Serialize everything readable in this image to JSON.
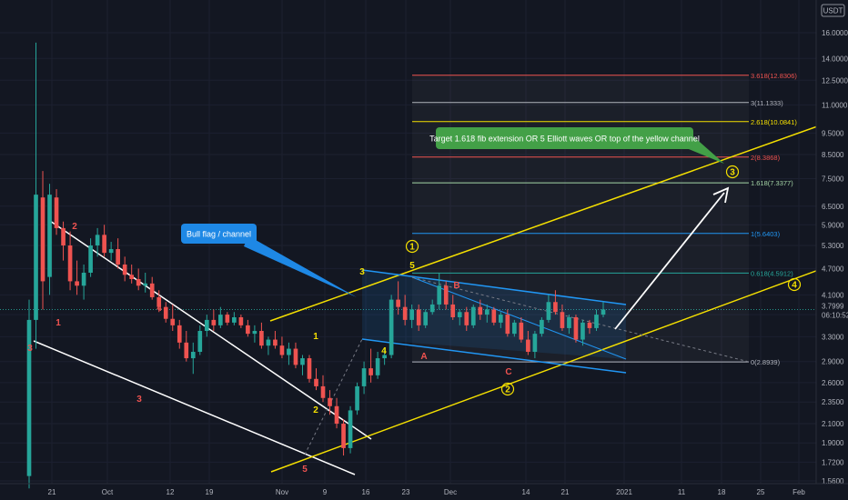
{
  "header": {
    "currency": "USDT"
  },
  "chart_data": {
    "type": "candlestick",
    "y_scale": "log",
    "ylim": [
      1.5,
      21
    ],
    "price_ticks": [
      16.0,
      14.0,
      12.5,
      11.0,
      9.5,
      8.5,
      7.5,
      6.5,
      5.9,
      5.3,
      4.7,
      4.1,
      3.7,
      3.3,
      2.9,
      2.6,
      2.35,
      2.1,
      1.9,
      1.72,
      1.56
    ],
    "price_tick_labels": [
      "16.0000",
      "14.0000",
      "12.5000",
      "11.0000",
      "9.5000",
      "8.5000",
      "7.5000",
      "6.5000",
      "5.9000",
      "5.3000",
      "4.7000",
      "4.1000",
      "",
      "3.3000",
      "2.9000",
      "2.6000",
      "2.3500",
      "2.1000",
      "1.9000",
      "1.7200",
      "1.5600"
    ],
    "time_ticks": [
      "21",
      "Oct",
      "12",
      "19",
      "Nov",
      "9",
      "16",
      "23",
      "Dec",
      "14",
      "21",
      "2021",
      "11",
      "18",
      "25",
      "Feb"
    ],
    "current_price": {
      "label": "3.7999",
      "countdown": "06:10:52",
      "value": 3.7999
    },
    "candles": [
      {
        "o": 1.6,
        "h": 4.0,
        "l": 1.5,
        "c": 3.6
      },
      {
        "o": 3.6,
        "h": 15.2,
        "l": 3.1,
        "c": 6.9
      },
      {
        "o": 6.8,
        "h": 7.8,
        "l": 3.8,
        "c": 4.4
      },
      {
        "o": 4.5,
        "h": 7.3,
        "l": 4.1,
        "c": 6.9
      },
      {
        "o": 6.8,
        "h": 7.1,
        "l": 5.6,
        "c": 5.8
      },
      {
        "o": 5.8,
        "h": 6.0,
        "l": 4.9,
        "c": 5.3
      },
      {
        "o": 5.3,
        "h": 5.7,
        "l": 4.2,
        "c": 4.4
      },
      {
        "o": 4.4,
        "h": 4.9,
        "l": 4.1,
        "c": 4.3
      },
      {
        "o": 4.3,
        "h": 4.8,
        "l": 4.0,
        "c": 4.6
      },
      {
        "o": 4.6,
        "h": 5.5,
        "l": 4.5,
        "c": 5.3
      },
      {
        "o": 5.3,
        "h": 5.8,
        "l": 5.0,
        "c": 5.6
      },
      {
        "o": 5.6,
        "h": 5.9,
        "l": 5.0,
        "c": 5.1
      },
      {
        "o": 5.1,
        "h": 5.4,
        "l": 4.9,
        "c": 5.2
      },
      {
        "o": 5.2,
        "h": 5.5,
        "l": 4.7,
        "c": 4.8
      },
      {
        "o": 4.8,
        "h": 5.0,
        "l": 4.4,
        "c": 4.55
      },
      {
        "o": 4.55,
        "h": 4.8,
        "l": 4.35,
        "c": 4.45
      },
      {
        "o": 4.45,
        "h": 4.7,
        "l": 4.2,
        "c": 4.3
      },
      {
        "o": 4.3,
        "h": 4.6,
        "l": 4.15,
        "c": 4.35
      },
      {
        "o": 4.35,
        "h": 4.5,
        "l": 4.0,
        "c": 4.05
      },
      {
        "o": 4.05,
        "h": 4.2,
        "l": 3.75,
        "c": 3.85
      },
      {
        "o": 3.85,
        "h": 3.95,
        "l": 3.55,
        "c": 3.62
      },
      {
        "o": 3.62,
        "h": 3.9,
        "l": 3.4,
        "c": 3.5
      },
      {
        "o": 3.5,
        "h": 3.6,
        "l": 3.1,
        "c": 3.2
      },
      {
        "o": 3.2,
        "h": 3.4,
        "l": 2.9,
        "c": 2.95
      },
      {
        "o": 2.95,
        "h": 3.2,
        "l": 2.72,
        "c": 3.05
      },
      {
        "o": 3.05,
        "h": 3.5,
        "l": 3.0,
        "c": 3.4
      },
      {
        "o": 3.4,
        "h": 3.7,
        "l": 3.3,
        "c": 3.6
      },
      {
        "o": 3.6,
        "h": 3.8,
        "l": 3.4,
        "c": 3.5
      },
      {
        "o": 3.5,
        "h": 3.85,
        "l": 3.45,
        "c": 3.7
      },
      {
        "o": 3.7,
        "h": 3.75,
        "l": 3.5,
        "c": 3.55
      },
      {
        "o": 3.55,
        "h": 3.75,
        "l": 3.5,
        "c": 3.65
      },
      {
        "o": 3.65,
        "h": 3.7,
        "l": 3.45,
        "c": 3.5
      },
      {
        "o": 3.5,
        "h": 3.6,
        "l": 3.3,
        "c": 3.35
      },
      {
        "o": 3.35,
        "h": 3.5,
        "l": 3.2,
        "c": 3.4
      },
      {
        "o": 3.4,
        "h": 3.55,
        "l": 3.1,
        "c": 3.15
      },
      {
        "o": 3.15,
        "h": 3.3,
        "l": 3.0,
        "c": 3.25
      },
      {
        "o": 3.25,
        "h": 3.4,
        "l": 3.1,
        "c": 3.15
      },
      {
        "o": 3.15,
        "h": 3.3,
        "l": 2.95,
        "c": 3.0
      },
      {
        "o": 3.0,
        "h": 3.2,
        "l": 2.85,
        "c": 3.1
      },
      {
        "o": 3.1,
        "h": 3.2,
        "l": 2.8,
        "c": 2.85
      },
      {
        "o": 2.85,
        "h": 3.0,
        "l": 2.7,
        "c": 2.95
      },
      {
        "o": 2.95,
        "h": 3.0,
        "l": 2.6,
        "c": 2.65
      },
      {
        "o": 2.65,
        "h": 2.8,
        "l": 2.5,
        "c": 2.55
      },
      {
        "o": 2.55,
        "h": 2.7,
        "l": 2.35,
        "c": 2.4
      },
      {
        "o": 2.4,
        "h": 2.5,
        "l": 2.2,
        "c": 2.3
      },
      {
        "o": 2.3,
        "h": 2.4,
        "l": 2.05,
        "c": 2.1
      },
      {
        "o": 2.1,
        "h": 2.15,
        "l": 1.78,
        "c": 1.85
      },
      {
        "o": 1.85,
        "h": 2.3,
        "l": 1.8,
        "c": 2.25
      },
      {
        "o": 2.25,
        "h": 2.6,
        "l": 2.2,
        "c": 2.55
      },
      {
        "o": 2.55,
        "h": 2.9,
        "l": 2.45,
        "c": 2.8
      },
      {
        "o": 2.8,
        "h": 3.1,
        "l": 2.6,
        "c": 2.7
      },
      {
        "o": 2.7,
        "h": 3.05,
        "l": 2.65,
        "c": 2.95
      },
      {
        "o": 2.95,
        "h": 3.1,
        "l": 2.85,
        "c": 3.0
      },
      {
        "o": 3.0,
        "h": 4.1,
        "l": 2.95,
        "c": 4.0
      },
      {
        "o": 4.0,
        "h": 4.4,
        "l": 3.7,
        "c": 3.85
      },
      {
        "o": 3.85,
        "h": 4.1,
        "l": 3.5,
        "c": 3.6
      },
      {
        "o": 3.6,
        "h": 3.9,
        "l": 3.45,
        "c": 3.8
      },
      {
        "o": 3.8,
        "h": 3.9,
        "l": 3.4,
        "c": 3.5
      },
      {
        "o": 3.5,
        "h": 3.8,
        "l": 3.45,
        "c": 3.75
      },
      {
        "o": 3.75,
        "h": 4.0,
        "l": 3.7,
        "c": 3.9
      },
      {
        "o": 3.9,
        "h": 4.6,
        "l": 3.8,
        "c": 4.3
      },
      {
        "o": 4.3,
        "h": 4.4,
        "l": 3.8,
        "c": 3.9
      },
      {
        "o": 3.9,
        "h": 4.1,
        "l": 3.6,
        "c": 3.65
      },
      {
        "o": 3.65,
        "h": 3.8,
        "l": 3.5,
        "c": 3.75
      },
      {
        "o": 3.75,
        "h": 3.85,
        "l": 3.4,
        "c": 3.5
      },
      {
        "o": 3.5,
        "h": 3.9,
        "l": 3.45,
        "c": 3.85
      },
      {
        "o": 3.85,
        "h": 4.0,
        "l": 3.6,
        "c": 3.7
      },
      {
        "o": 3.7,
        "h": 3.9,
        "l": 3.55,
        "c": 3.8
      },
      {
        "o": 3.8,
        "h": 3.85,
        "l": 3.5,
        "c": 3.55
      },
      {
        "o": 3.55,
        "h": 3.75,
        "l": 3.45,
        "c": 3.7
      },
      {
        "o": 3.7,
        "h": 3.8,
        "l": 3.3,
        "c": 3.35
      },
      {
        "o": 3.35,
        "h": 3.6,
        "l": 3.3,
        "c": 3.55
      },
      {
        "o": 3.55,
        "h": 3.65,
        "l": 3.2,
        "c": 3.25
      },
      {
        "o": 3.25,
        "h": 3.4,
        "l": 3.0,
        "c": 3.05
      },
      {
        "o": 3.05,
        "h": 3.4,
        "l": 2.95,
        "c": 3.35
      },
      {
        "o": 3.35,
        "h": 3.65,
        "l": 3.3,
        "c": 3.6
      },
      {
        "o": 3.6,
        "h": 4.1,
        "l": 3.55,
        "c": 3.95
      },
      {
        "o": 3.95,
        "h": 4.2,
        "l": 3.7,
        "c": 3.75
      },
      {
        "o": 3.75,
        "h": 3.9,
        "l": 3.4,
        "c": 3.45
      },
      {
        "o": 3.45,
        "h": 3.7,
        "l": 3.35,
        "c": 3.65
      },
      {
        "o": 3.65,
        "h": 3.7,
        "l": 3.2,
        "c": 3.25
      },
      {
        "o": 3.25,
        "h": 3.6,
        "l": 3.15,
        "c": 3.55
      },
      {
        "o": 3.55,
        "h": 3.6,
        "l": 3.35,
        "c": 3.45
      },
      {
        "o": 3.45,
        "h": 3.8,
        "l": 3.4,
        "c": 3.7
      },
      {
        "o": 3.7,
        "h": 3.95,
        "l": 3.65,
        "c": 3.8
      }
    ],
    "fib_levels": [
      {
        "label": "3.618(12.8306)",
        "value": 12.8306,
        "color": "#ef5350"
      },
      {
        "label": "3(11.1333)",
        "value": 11.1333,
        "color": "#b2b5be"
      },
      {
        "label": "2.618(10.0841)",
        "value": 10.0841,
        "color": "#f5e000"
      },
      {
        "label": "2(8.3868)",
        "value": 8.3868,
        "color": "#ef5350"
      },
      {
        "label": "1.618(7.3377)",
        "value": 7.3377,
        "color": "#a5d6a7"
      },
      {
        "label": "1(5.6403)",
        "value": 5.6403,
        "color": "#2196f3"
      },
      {
        "label": "0.618(4.5912)",
        "value": 4.5912,
        "color": "#26a69a"
      },
      {
        "label": "0(2.8939)",
        "value": 2.8939,
        "color": "#b2b5be"
      }
    ],
    "annotations": {
      "bull_flag": "Bull flag / channel",
      "target": "Target 1.618 fib extension OR 5 Elliott waves OR top of the yellow channel"
    },
    "wave_labels": [
      {
        "text": "1",
        "color": "#ef5350"
      },
      {
        "text": "2",
        "color": "#ef5350"
      },
      {
        "text": "3",
        "color": "#ef5350"
      },
      {
        "text": "4",
        "color": "#ef5350"
      },
      {
        "text": "3",
        "color": "#ef5350"
      },
      {
        "text": "5",
        "color": "#ef5350"
      },
      {
        "text": "1",
        "color": "#f5e000"
      },
      {
        "text": "2",
        "color": "#f5e000"
      },
      {
        "text": "3",
        "color": "#f5e000"
      },
      {
        "text": "4",
        "color": "#f5e000"
      },
      {
        "text": "5",
        "color": "#f5e000"
      },
      {
        "text": "A",
        "color": "#ef5350"
      },
      {
        "text": "B",
        "color": "#ef5350"
      },
      {
        "text": "C",
        "color": "#ef5350"
      }
    ],
    "circled_labels": [
      "1",
      "2",
      "3",
      "4"
    ],
    "colors": {
      "up": "#26a69a",
      "down": "#ef5350",
      "yellow": "#f5e000",
      "blue": "#2196f3",
      "background": "#131722"
    }
  }
}
